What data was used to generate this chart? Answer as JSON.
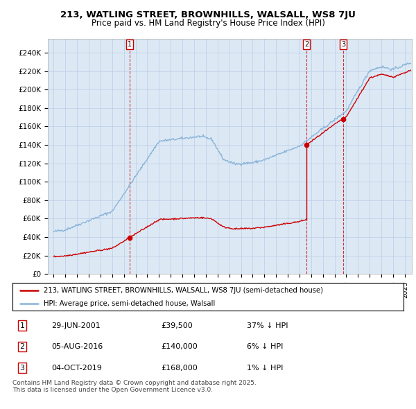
{
  "title": "213, WATLING STREET, BROWNHILLS, WALSALL, WS8 7JU",
  "subtitle": "Price paid vs. HM Land Registry's House Price Index (HPI)",
  "ylabel_ticks": [
    "£0",
    "£20K",
    "£40K",
    "£60K",
    "£80K",
    "£100K",
    "£120K",
    "£140K",
    "£160K",
    "£180K",
    "£200K",
    "£220K",
    "£240K"
  ],
  "ytick_values": [
    0,
    20000,
    40000,
    60000,
    80000,
    100000,
    120000,
    140000,
    160000,
    180000,
    200000,
    220000,
    240000
  ],
  "ylim": [
    0,
    255000
  ],
  "xlim_start": 1994.5,
  "xlim_end": 2025.6,
  "sale_dates": [
    2001.49,
    2016.59,
    2019.75
  ],
  "sale_prices": [
    39500,
    140000,
    168000
  ],
  "sale_labels": [
    "1",
    "2",
    "3"
  ],
  "hpi_color": "#8ab4d8",
  "sale_color": "#cc0000",
  "vline_color": "#cc0000",
  "plot_bg_color": "#dce9f5",
  "legend_house_label": "213, WATLING STREET, BROWNHILLS, WALSALL, WS8 7JU (semi-detached house)",
  "legend_hpi_label": "HPI: Average price, semi-detached house, Walsall",
  "table_entries": [
    {
      "num": "1",
      "date": "29-JUN-2001",
      "price": "£39,500",
      "pct": "37% ↓ HPI"
    },
    {
      "num": "2",
      "date": "05-AUG-2016",
      "price": "£140,000",
      "pct": "6% ↓ HPI"
    },
    {
      "num": "3",
      "date": "04-OCT-2019",
      "price": "£168,000",
      "pct": "1% ↓ HPI"
    }
  ],
  "footer": "Contains HM Land Registry data © Crown copyright and database right 2025.\nThis data is licensed under the Open Government Licence v3.0.",
  "background_color": "#ffffff",
  "grid_color": "#c0d0e8"
}
